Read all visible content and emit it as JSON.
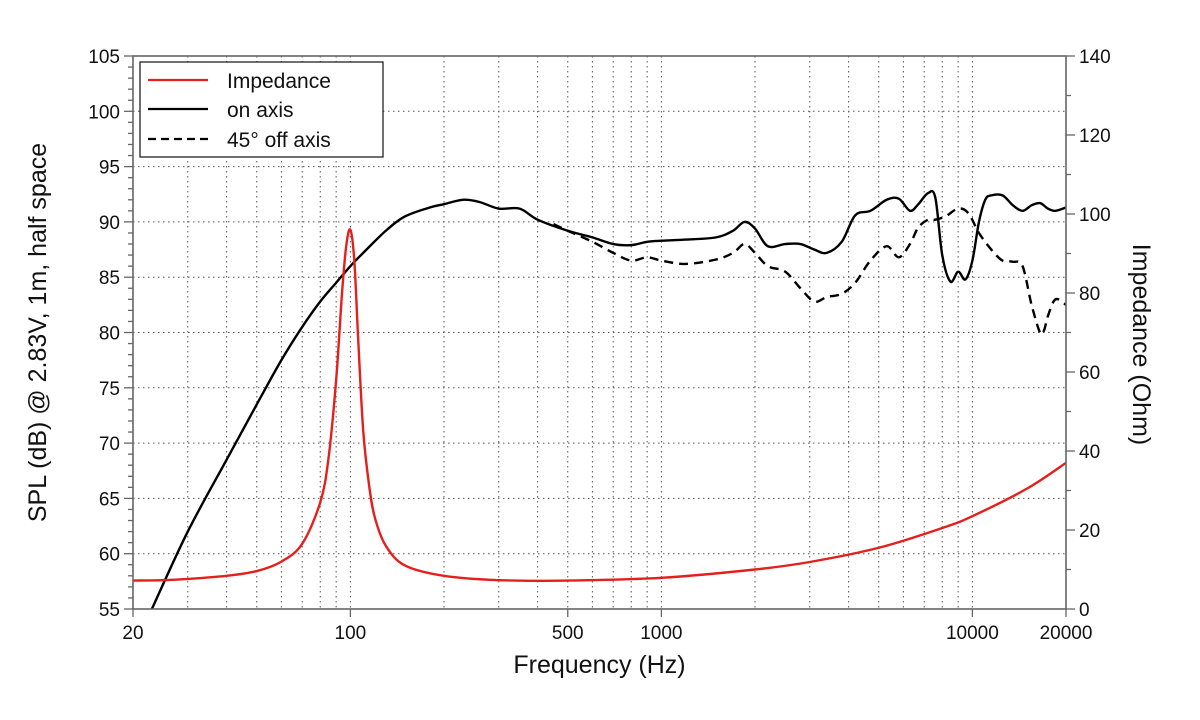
{
  "chart_data": {
    "type": "line",
    "title": "",
    "xlabel": "Frequency (Hz)",
    "ylabel": "SPL (dB) @ 2.83V, 1m, half space",
    "y2label": "Impedance (Ohm)",
    "xscale": "log",
    "xlim": [
      20,
      20000
    ],
    "ylim": [
      55,
      105
    ],
    "y2lim": [
      0,
      140
    ],
    "grid": true,
    "legend_position": "top-left",
    "x_ticks": [
      20,
      100,
      500,
      1000,
      10000,
      20000
    ],
    "x_tick_labels": [
      "20",
      "100",
      "500",
      "1000",
      "10000",
      "20000"
    ],
    "y_ticks": [
      55,
      60,
      65,
      70,
      75,
      80,
      85,
      90,
      95,
      100,
      105
    ],
    "y_tick_labels": [
      "55",
      "60",
      "65",
      "70",
      "75",
      "80",
      "85",
      "90",
      "95",
      "100",
      "105"
    ],
    "y2_ticks": [
      0,
      20,
      40,
      60,
      80,
      100,
      120,
      140
    ],
    "y2_tick_labels": [
      "0",
      "20",
      "40",
      "60",
      "80",
      "100",
      "120",
      "140"
    ],
    "series": [
      {
        "name": "Impedance",
        "axis": "right",
        "color": "#e3201b",
        "style": "solid",
        "x": [
          20,
          25,
          30,
          40,
          50,
          60,
          70,
          80,
          85,
          90,
          94,
          97,
          100,
          103,
          106,
          110,
          115,
          120,
          130,
          150,
          200,
          300,
          500,
          1000,
          2000,
          3000,
          5000,
          8000,
          10000,
          15000,
          20000
        ],
        "y": [
          7.2,
          7.3,
          7.6,
          8.4,
          9.6,
          12.0,
          16.5,
          27,
          38,
          58,
          80,
          92,
          96,
          88,
          68,
          45,
          31,
          23,
          16,
          11,
          8.4,
          7.3,
          7.2,
          7.9,
          10.0,
          11.9,
          15.5,
          20.5,
          23.5,
          30.5,
          37
        ]
      },
      {
        "name": "on axis",
        "axis": "left",
        "color": "#000000",
        "style": "solid",
        "x": [
          23,
          30,
          40,
          50,
          60,
          70,
          80,
          90,
          100,
          110,
          130,
          150,
          180,
          200,
          230,
          260,
          300,
          350,
          400,
          500,
          600,
          700,
          800,
          900,
          1000,
          1200,
          1500,
          1700,
          1850,
          2000,
          2200,
          2500,
          2800,
          3100,
          3400,
          3800,
          4200,
          4700,
          5300,
          5800,
          6300,
          6700,
          7200,
          7600,
          8000,
          8500,
          9000,
          9500,
          10000,
          10500,
          11000,
          11500,
          12500,
          13500,
          14500,
          15500,
          16500,
          17500,
          18500,
          20000
        ],
        "y": [
          55,
          62,
          68.5,
          73.5,
          77.5,
          80.5,
          82.8,
          84.5,
          86.0,
          87.2,
          89.2,
          90.5,
          91.3,
          91.6,
          92.0,
          91.8,
          91.2,
          91.2,
          90.2,
          89.2,
          88.6,
          88.0,
          87.9,
          88.2,
          88.3,
          88.4,
          88.6,
          89.2,
          90.0,
          89.4,
          87.8,
          88.0,
          88.0,
          87.5,
          87.2,
          88.2,
          90.6,
          91.0,
          92.0,
          92.1,
          91.0,
          91.6,
          92.6,
          92.2,
          87.0,
          84.6,
          85.5,
          84.8,
          86.5,
          90.0,
          92.0,
          92.4,
          92.4,
          91.5,
          91.0,
          91.5,
          91.7,
          91.2,
          91.0,
          91.3
        ]
      },
      {
        "name": "45° off axis",
        "axis": "left",
        "color": "#000000",
        "style": "dashed",
        "x": [
          450,
          500,
          600,
          700,
          800,
          900,
          1000,
          1200,
          1500,
          1700,
          1850,
          2000,
          2200,
          2500,
          2800,
          3100,
          3400,
          3800,
          4200,
          4700,
          5300,
          5800,
          6300,
          6700,
          7200,
          7600,
          8200,
          9000,
          9700,
          10500,
          11500,
          12500,
          13500,
          14500,
          15500,
          16500,
          17000,
          17500,
          18500,
          20000
        ],
        "y": [
          89.8,
          89.2,
          88.2,
          87.2,
          86.5,
          86.8,
          86.5,
          86.2,
          86.6,
          87.2,
          88.0,
          87.2,
          86.0,
          85.5,
          84.0,
          82.8,
          83.2,
          83.5,
          84.5,
          86.5,
          87.8,
          86.8,
          88.0,
          89.5,
          90.2,
          90.2,
          90.5,
          91.2,
          90.8,
          89.0,
          87.5,
          86.5,
          86.4,
          86.0,
          82.5,
          80.0,
          80.2,
          81.5,
          83.0,
          82.5
        ]
      }
    ]
  }
}
